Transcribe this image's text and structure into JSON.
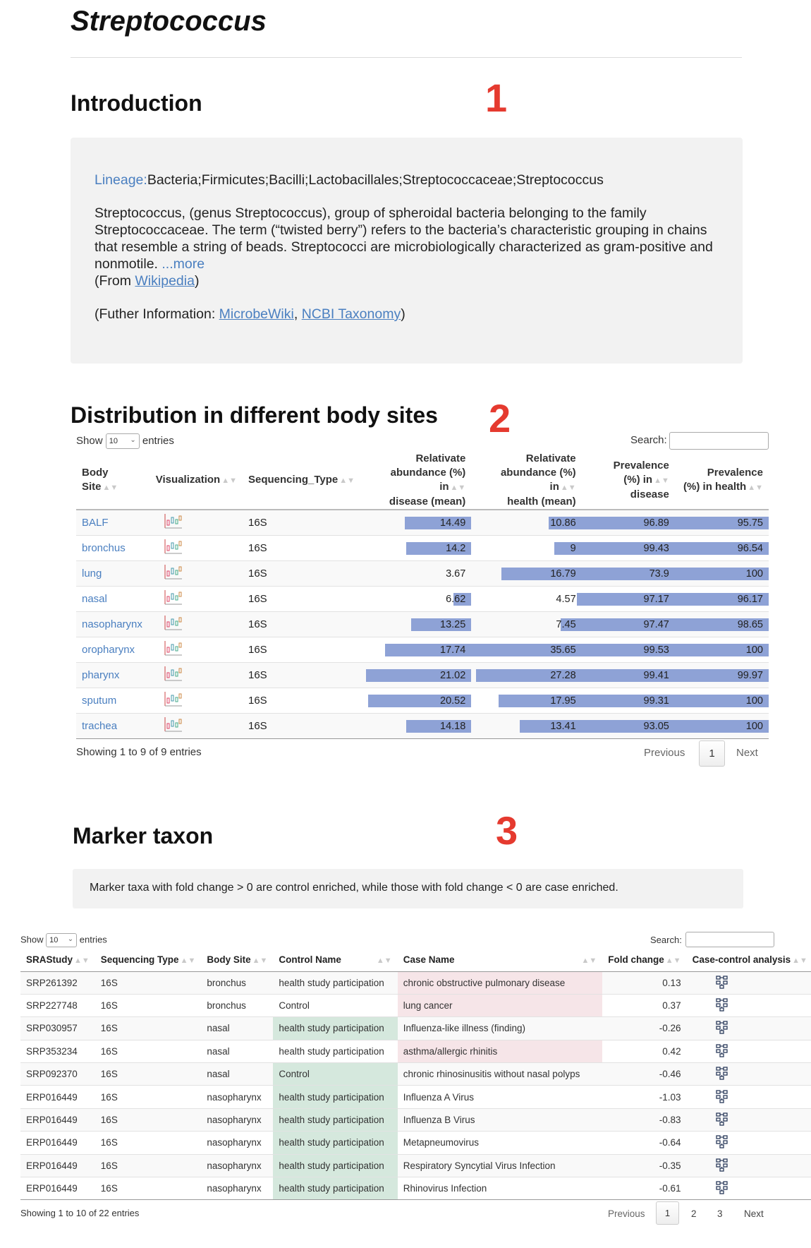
{
  "page": {
    "title": "Streptococcus"
  },
  "intro": {
    "heading": "Introduction",
    "section_number": "1",
    "lineage_label": "Lineage:",
    "lineage_value": "Bacteria;Firmicutes;Bacilli;Lactobacillales;Streptococcaceae;Streptococcus",
    "description": "Streptococcus, (genus Streptococcus), group of spheroidal bacteria belonging to the family Streptococcaceae. The term (“twisted berry”) refers to the bacteria’s characteristic grouping in chains that resemble a string of beads. Streptococci are microbiologically characterized as gram-positive and nonmotile.",
    "more_link": "...more",
    "from_prefix": "(From ",
    "from_link": "Wikipedia",
    "from_suffix": ")",
    "further_prefix": "(Futher Information: ",
    "further_link1": "MicrobeWiki",
    "further_sep": ", ",
    "further_link2": "NCBI Taxonomy",
    "further_suffix": ")"
  },
  "distribution": {
    "heading": "Distribution in different body sites",
    "section_number": "2",
    "show_label": "Show",
    "entries_value": "10",
    "entries_label": "entries",
    "search_label": "Search:",
    "columns": {
      "body_site": "Body Site",
      "visualization": "Visualization",
      "seq_type": "Sequencing_Type",
      "rel_disease_1": "Relativate",
      "rel_disease_2": "abundance (%) in",
      "rel_disease_3": "disease (mean)",
      "rel_health_1": "Relativate",
      "rel_health_2": "abundance (%) in",
      "rel_health_3": "health (mean)",
      "prev_disease_1": "Prevalence",
      "prev_disease_2": "(%) in",
      "prev_disease_3": "disease",
      "prev_health_1": "Prevalence",
      "prev_health_2": "(%) in health"
    },
    "rows": [
      {
        "site": "BALF",
        "seq": "16S",
        "rel_disease": "14.49",
        "rel_health": "10.86",
        "prev_disease": "96.89",
        "prev_health": "95.75"
      },
      {
        "site": "bronchus",
        "seq": "16S",
        "rel_disease": "14.2",
        "rel_health": "9",
        "prev_disease": "99.43",
        "prev_health": "96.54"
      },
      {
        "site": "lung",
        "seq": "16S",
        "rel_disease": "3.67",
        "rel_health": "16.79",
        "prev_disease": "73.9",
        "prev_health": "100"
      },
      {
        "site": "nasal",
        "seq": "16S",
        "rel_disease": "6.62",
        "rel_health": "4.57",
        "prev_disease": "97.17",
        "prev_health": "96.17"
      },
      {
        "site": "nasopharynx",
        "seq": "16S",
        "rel_disease": "13.25",
        "rel_health": "7.45",
        "prev_disease": "97.47",
        "prev_health": "98.65"
      },
      {
        "site": "oropharynx",
        "seq": "16S",
        "rel_disease": "17.74",
        "rel_health": "35.65",
        "prev_disease": "99.53",
        "prev_health": "100"
      },
      {
        "site": "pharynx",
        "seq": "16S",
        "rel_disease": "21.02",
        "rel_health": "27.28",
        "prev_disease": "99.41",
        "prev_health": "99.97"
      },
      {
        "site": "sputum",
        "seq": "16S",
        "rel_disease": "20.52",
        "rel_health": "17.95",
        "prev_disease": "99.31",
        "prev_health": "100"
      },
      {
        "site": "trachea",
        "seq": "16S",
        "rel_disease": "14.18",
        "rel_health": "13.41",
        "prev_disease": "93.05",
        "prev_health": "100"
      }
    ],
    "bar_fill_fraction": {
      "rel_disease": [
        0.6,
        0.59,
        0.0,
        0.16,
        0.54,
        0.78,
        0.95,
        0.93,
        0.59
      ],
      "rel_health": [
        0.3,
        0.25,
        0.73,
        0.04,
        0.19,
        1.0,
        0.96,
        0.75,
        0.56
      ],
      "prev_disease": [
        1.0,
        1.0,
        1.0,
        1.0,
        1.0,
        1.0,
        1.0,
        1.0,
        1.0
      ],
      "prev_health": [
        1.0,
        1.0,
        1.0,
        1.0,
        1.0,
        1.0,
        1.0,
        1.0,
        1.0
      ]
    },
    "info": "Showing 1 to 9 of 9 entries",
    "prev_label": "Previous",
    "page_label": "1",
    "next_label": "Next"
  },
  "marker": {
    "heading": "Marker taxon",
    "section_number": "3",
    "note": "Marker taxa with fold change > 0 are control enriched, while those with fold change < 0 are case enriched.",
    "show_label": "Show",
    "entries_value": "10",
    "entries_label": "entries",
    "search_label": "Search:",
    "columns": {
      "study": "SRAStudy",
      "seq": "Sequencing Type",
      "site": "Body Site",
      "control": "Control Name",
      "case": "Case Name",
      "fold": "Fold change",
      "analysis": "Case-control analysis"
    },
    "rows": [
      {
        "study": "SRP261392",
        "seq": "16S",
        "site": "bronchus",
        "control": "health study participation",
        "case": "chronic obstructive pulmonary disease",
        "fold": "0.13",
        "hl": "case"
      },
      {
        "study": "SRP227748",
        "seq": "16S",
        "site": "bronchus",
        "control": "Control",
        "case": "lung cancer",
        "fold": "0.37",
        "hl": "case"
      },
      {
        "study": "SRP030957",
        "seq": "16S",
        "site": "nasal",
        "control": "health study participation",
        "case": "Influenza-like illness (finding)",
        "fold": "-0.26",
        "hl": "control"
      },
      {
        "study": "SRP353234",
        "seq": "16S",
        "site": "nasal",
        "control": "health study participation",
        "case": "asthma/allergic rhinitis",
        "fold": "0.42",
        "hl": "case"
      },
      {
        "study": "SRP092370",
        "seq": "16S",
        "site": "nasal",
        "control": "Control",
        "case": "chronic rhinosinusitis without nasal polyps",
        "fold": "-0.46",
        "hl": "control"
      },
      {
        "study": "ERP016449",
        "seq": "16S",
        "site": "nasopharynx",
        "control": "health study participation",
        "case": "Influenza A Virus",
        "fold": "-1.03",
        "hl": "control"
      },
      {
        "study": "ERP016449",
        "seq": "16S",
        "site": "nasopharynx",
        "control": "health study participation",
        "case": "Influenza B Virus",
        "fold": "-0.83",
        "hl": "control"
      },
      {
        "study": "ERP016449",
        "seq": "16S",
        "site": "nasopharynx",
        "control": "health study participation",
        "case": "Metapneumovirus",
        "fold": "-0.64",
        "hl": "control"
      },
      {
        "study": "ERP016449",
        "seq": "16S",
        "site": "nasopharynx",
        "control": "health study participation",
        "case": "Respiratory Syncytial Virus Infection",
        "fold": "-0.35",
        "hl": "control"
      },
      {
        "study": "ERP016449",
        "seq": "16S",
        "site": "nasopharynx",
        "control": "health study participation",
        "case": "Rhinovirus Infection",
        "fold": "-0.61",
        "hl": "control"
      }
    ],
    "info": "Showing 1 to 10 of 22 entries",
    "prev_label": "Previous",
    "pages": [
      "1",
      "2",
      "3"
    ],
    "next_label": "Next"
  },
  "colors": {
    "accent_link": "#4a7fc0",
    "bar": "#8ea2d6",
    "section_number": "#e53a2f",
    "control_highlight": "#d5e8dd",
    "case_highlight": "#f6e5e8"
  },
  "icons": {
    "visualization": "boxplot-chart-icon",
    "analysis": "network-graph-icon"
  }
}
